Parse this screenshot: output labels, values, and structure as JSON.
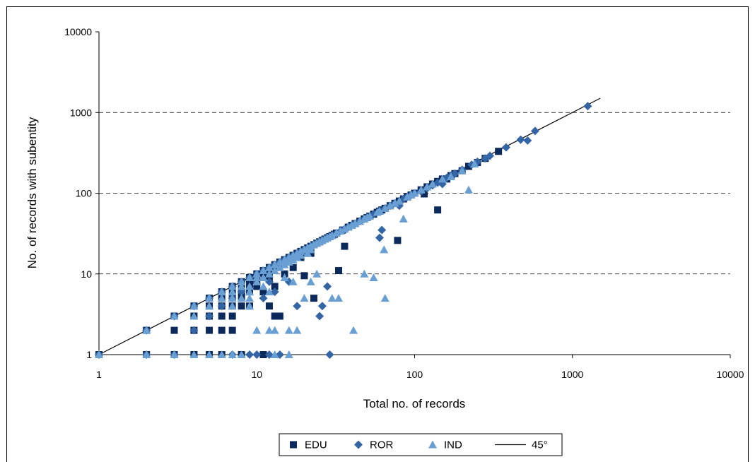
{
  "chart_data": {
    "type": "scatter",
    "title": "",
    "xlabel": "Total no. of records",
    "ylabel": "No. of records with subentity",
    "x_scale": "log",
    "y_scale": "log",
    "xlim": [
      1,
      10000
    ],
    "ylim": [
      1,
      10000
    ],
    "x_ticks": [
      "1",
      "10",
      "100",
      "1000",
      "10000"
    ],
    "y_ticks": [
      "1",
      "10",
      "100",
      "1000",
      "10000"
    ],
    "grid": "horizontal dashed at 10, 100, 1000",
    "legend_position": "bottom",
    "series": [
      {
        "name": "EDU",
        "marker": "square",
        "color": "#0b2a5b",
        "points": [
          [
            1,
            1
          ],
          [
            2,
            2
          ],
          [
            2,
            1
          ],
          [
            3,
            3
          ],
          [
            3,
            2
          ],
          [
            3,
            1
          ],
          [
            4,
            4
          ],
          [
            4,
            3
          ],
          [
            4,
            2
          ],
          [
            4,
            1
          ],
          [
            5,
            5
          ],
          [
            5,
            4
          ],
          [
            5,
            3
          ],
          [
            5,
            2
          ],
          [
            5,
            1
          ],
          [
            6,
            6
          ],
          [
            6,
            5
          ],
          [
            6,
            4
          ],
          [
            6,
            3
          ],
          [
            6,
            2
          ],
          [
            6,
            1
          ],
          [
            7,
            7
          ],
          [
            7,
            6
          ],
          [
            7,
            5
          ],
          [
            7,
            4
          ],
          [
            7,
            3
          ],
          [
            7,
            2
          ],
          [
            8,
            8
          ],
          [
            8,
            7
          ],
          [
            8,
            6
          ],
          [
            8,
            5
          ],
          [
            8,
            4
          ],
          [
            8,
            1
          ],
          [
            9,
            9
          ],
          [
            9,
            8
          ],
          [
            9,
            7
          ],
          [
            9,
            6
          ],
          [
            9,
            4
          ],
          [
            10,
            10
          ],
          [
            10,
            9
          ],
          [
            10,
            8
          ],
          [
            10,
            7
          ],
          [
            11,
            11
          ],
          [
            11,
            10
          ],
          [
            11,
            6
          ],
          [
            11,
            1
          ],
          [
            12,
            12
          ],
          [
            12,
            11
          ],
          [
            12,
            9
          ],
          [
            12,
            4
          ],
          [
            13,
            13
          ],
          [
            13,
            12
          ],
          [
            13,
            7
          ],
          [
            13,
            3
          ],
          [
            14,
            14
          ],
          [
            14,
            13
          ],
          [
            14,
            3
          ],
          [
            15,
            15
          ],
          [
            15,
            14
          ],
          [
            15,
            10
          ],
          [
            16,
            16
          ],
          [
            16,
            15
          ],
          [
            17,
            17
          ],
          [
            17,
            16
          ],
          [
            17,
            12
          ],
          [
            18,
            18
          ],
          [
            18,
            17
          ],
          [
            19,
            19
          ],
          [
            19,
            16
          ],
          [
            20,
            20
          ],
          [
            20,
            18
          ],
          [
            20,
            9.5
          ],
          [
            21,
            21
          ],
          [
            21,
            19
          ],
          [
            22,
            22
          ],
          [
            22,
            18
          ],
          [
            23,
            23
          ],
          [
            23,
            5
          ],
          [
            24,
            24
          ],
          [
            25,
            25
          ],
          [
            26,
            26
          ],
          [
            27,
            27
          ],
          [
            28,
            28
          ],
          [
            29,
            29
          ],
          [
            30,
            30
          ],
          [
            31,
            31
          ],
          [
            32,
            32
          ],
          [
            33,
            11
          ],
          [
            35,
            35
          ],
          [
            36,
            22
          ],
          [
            38,
            38
          ],
          [
            40,
            40
          ],
          [
            42,
            42
          ],
          [
            45,
            45
          ],
          [
            48,
            48
          ],
          [
            50,
            50
          ],
          [
            52,
            52
          ],
          [
            55,
            55
          ],
          [
            58,
            58
          ],
          [
            60,
            60
          ],
          [
            62,
            62
          ],
          [
            65,
            65
          ],
          [
            70,
            70
          ],
          [
            75,
            75
          ],
          [
            78,
            26
          ],
          [
            80,
            80
          ],
          [
            85,
            85
          ],
          [
            90,
            90
          ],
          [
            95,
            95
          ],
          [
            100,
            100
          ],
          [
            110,
            110
          ],
          [
            115,
            98
          ],
          [
            120,
            120
          ],
          [
            130,
            130
          ],
          [
            140,
            140
          ],
          [
            140,
            62
          ],
          [
            150,
            150
          ],
          [
            160,
            150
          ],
          [
            170,
            165
          ],
          [
            180,
            175
          ],
          [
            200,
            190
          ],
          [
            220,
            215
          ],
          [
            250,
            240
          ],
          [
            280,
            270
          ],
          [
            340,
            330
          ]
        ]
      },
      {
        "name": "ROR",
        "marker": "diamond",
        "color": "#3465a4",
        "points": [
          [
            1,
            1
          ],
          [
            2,
            2
          ],
          [
            2,
            1
          ],
          [
            3,
            3
          ],
          [
            3,
            1
          ],
          [
            4,
            4
          ],
          [
            4,
            2
          ],
          [
            5,
            5
          ],
          [
            5,
            3
          ],
          [
            6,
            6
          ],
          [
            6,
            4
          ],
          [
            7,
            7
          ],
          [
            7,
            5
          ],
          [
            7,
            1
          ],
          [
            8,
            8
          ],
          [
            8,
            6
          ],
          [
            9,
            9
          ],
          [
            9,
            1
          ],
          [
            10,
            10
          ],
          [
            10,
            1
          ],
          [
            11,
            11
          ],
          [
            11,
            5
          ],
          [
            12,
            12
          ],
          [
            12,
            8
          ],
          [
            12,
            1
          ],
          [
            13,
            13
          ],
          [
            13,
            6
          ],
          [
            14,
            14
          ],
          [
            14,
            1
          ],
          [
            15,
            15
          ],
          [
            16,
            16
          ],
          [
            16,
            8
          ],
          [
            17,
            17
          ],
          [
            18,
            18
          ],
          [
            18,
            4
          ],
          [
            19,
            19
          ],
          [
            20,
            20
          ],
          [
            21,
            21
          ],
          [
            22,
            22
          ],
          [
            23,
            23
          ],
          [
            24,
            24
          ],
          [
            25,
            25
          ],
          [
            25,
            3
          ],
          [
            26,
            26
          ],
          [
            26,
            4
          ],
          [
            27,
            27
          ],
          [
            28,
            28
          ],
          [
            28,
            7
          ],
          [
            29,
            1
          ],
          [
            30,
            30
          ],
          [
            32,
            32
          ],
          [
            34,
            34
          ],
          [
            36,
            36
          ],
          [
            38,
            38
          ],
          [
            40,
            40
          ],
          [
            42,
            42
          ],
          [
            45,
            45
          ],
          [
            48,
            48
          ],
          [
            50,
            50
          ],
          [
            55,
            55
          ],
          [
            60,
            60
          ],
          [
            60,
            28
          ],
          [
            62,
            35
          ],
          [
            65,
            65
          ],
          [
            70,
            70
          ],
          [
            75,
            75
          ],
          [
            80,
            70
          ],
          [
            85,
            85
          ],
          [
            90,
            90
          ],
          [
            95,
            95
          ],
          [
            100,
            100
          ],
          [
            110,
            105
          ],
          [
            120,
            115
          ],
          [
            130,
            125
          ],
          [
            140,
            135
          ],
          [
            150,
            130
          ],
          [
            160,
            155
          ],
          [
            170,
            165
          ],
          [
            180,
            175
          ],
          [
            200,
            195
          ],
          [
            230,
            225
          ],
          [
            250,
            245
          ],
          [
            280,
            270
          ],
          [
            300,
            290
          ],
          [
            380,
            370
          ],
          [
            470,
            460
          ],
          [
            520,
            450
          ],
          [
            580,
            590
          ],
          [
            1250,
            1200
          ]
        ]
      },
      {
        "name": "IND",
        "marker": "triangle",
        "color": "#6a9fd4",
        "points": [
          [
            1,
            1
          ],
          [
            2,
            2
          ],
          [
            2,
            1
          ],
          [
            3,
            3
          ],
          [
            3,
            1
          ],
          [
            4,
            4
          ],
          [
            4,
            3
          ],
          [
            4,
            1
          ],
          [
            5,
            5
          ],
          [
            5,
            4
          ],
          [
            5,
            1
          ],
          [
            6,
            6
          ],
          [
            6,
            5
          ],
          [
            6,
            1
          ],
          [
            7,
            7
          ],
          [
            7,
            6
          ],
          [
            7,
            5
          ],
          [
            7,
            4
          ],
          [
            7,
            1
          ],
          [
            8,
            8
          ],
          [
            8,
            7
          ],
          [
            8,
            5
          ],
          [
            8,
            1
          ],
          [
            9,
            9
          ],
          [
            9,
            7
          ],
          [
            9,
            6
          ],
          [
            9,
            5
          ],
          [
            9,
            4
          ],
          [
            10,
            10
          ],
          [
            10,
            9
          ],
          [
            10,
            8
          ],
          [
            10,
            2
          ],
          [
            11,
            11
          ],
          [
            11,
            9
          ],
          [
            11,
            7
          ],
          [
            12,
            12
          ],
          [
            12,
            10
          ],
          [
            12,
            6
          ],
          [
            12,
            2
          ],
          [
            13,
            13
          ],
          [
            13,
            11
          ],
          [
            13,
            2
          ],
          [
            13,
            1
          ],
          [
            14,
            14
          ],
          [
            14,
            12
          ],
          [
            15,
            15
          ],
          [
            15,
            13
          ],
          [
            15,
            9
          ],
          [
            16,
            16
          ],
          [
            16,
            14
          ],
          [
            16,
            2
          ],
          [
            16,
            1
          ],
          [
            17,
            17
          ],
          [
            17,
            15
          ],
          [
            17,
            8
          ],
          [
            18,
            18
          ],
          [
            18,
            16
          ],
          [
            18,
            2
          ],
          [
            19,
            19
          ],
          [
            19,
            17
          ],
          [
            20,
            20
          ],
          [
            20,
            5
          ],
          [
            21,
            21
          ],
          [
            21,
            18
          ],
          [
            22,
            22
          ],
          [
            22,
            20
          ],
          [
            22,
            8
          ],
          [
            23,
            23
          ],
          [
            24,
            24
          ],
          [
            24,
            10
          ],
          [
            25,
            25
          ],
          [
            26,
            26
          ],
          [
            27,
            27
          ],
          [
            28,
            28
          ],
          [
            29,
            29
          ],
          [
            30,
            30
          ],
          [
            30,
            5
          ],
          [
            32,
            32
          ],
          [
            33,
            5
          ],
          [
            34,
            34
          ],
          [
            36,
            36
          ],
          [
            38,
            38
          ],
          [
            40,
            40
          ],
          [
            41,
            2
          ],
          [
            42,
            42
          ],
          [
            45,
            45
          ],
          [
            48,
            48
          ],
          [
            48,
            10
          ],
          [
            50,
            50
          ],
          [
            52,
            52
          ],
          [
            55,
            9
          ],
          [
            58,
            58
          ],
          [
            60,
            60
          ],
          [
            64,
            20
          ],
          [
            65,
            65
          ],
          [
            65,
            5
          ],
          [
            70,
            70
          ],
          [
            75,
            75
          ],
          [
            80,
            80
          ],
          [
            85,
            48
          ],
          [
            90,
            90
          ],
          [
            95,
            95
          ],
          [
            100,
            100
          ],
          [
            110,
            110
          ],
          [
            120,
            120
          ],
          [
            130,
            130
          ],
          [
            150,
            150
          ],
          [
            170,
            160
          ],
          [
            200,
            190
          ],
          [
            220,
            110
          ],
          [
            240,
            230
          ]
        ]
      }
    ],
    "reference_line": {
      "name": "45°",
      "from": [
        1,
        1
      ],
      "to": [
        1500,
        1500
      ],
      "color": "#000000"
    }
  }
}
